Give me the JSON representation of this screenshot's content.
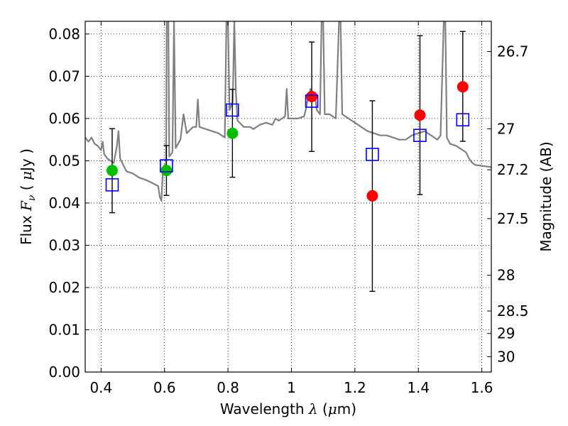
{
  "chart_data": {
    "type": "scatter",
    "title": "",
    "xlabel": {
      "prefix": "Wavelength  ",
      "symbol": "λ",
      "unit_open": " (",
      "mu": "μ",
      "unit_close": "m)"
    },
    "ylabel": {
      "prefix": "Flux  ",
      "symbol": "F",
      "subscript": "ν",
      "unit_open": "  ( ",
      "mu": "μ",
      "unit_close": "Jy )"
    },
    "y2label": "Magnitude (AB)",
    "xlim": [
      0.35,
      1.63
    ],
    "ylim": [
      0.0,
      0.083
    ],
    "grid": true,
    "x_ticks": [
      {
        "v": 0.4,
        "label": "0.4"
      },
      {
        "v": 0.6,
        "label": "0.6"
      },
      {
        "v": 0.8,
        "label": "0.8"
      },
      {
        "v": 1.0,
        "label": "1"
      },
      {
        "v": 1.2,
        "label": "1.2"
      },
      {
        "v": 1.4,
        "label": "1.4"
      },
      {
        "v": 1.6,
        "label": "1.6"
      }
    ],
    "y_ticks": [
      {
        "v": 0.0,
        "label": "0.00"
      },
      {
        "v": 0.01,
        "label": "0.01"
      },
      {
        "v": 0.02,
        "label": "0.02"
      },
      {
        "v": 0.03,
        "label": "0.03"
      },
      {
        "v": 0.04,
        "label": "0.04"
      },
      {
        "v": 0.05,
        "label": "0.05"
      },
      {
        "v": 0.06,
        "label": "0.06"
      },
      {
        "v": 0.07,
        "label": "0.07"
      },
      {
        "v": 0.08,
        "label": "0.08"
      }
    ],
    "y2_ticks": [
      {
        "mag": 26.7,
        "label": "26.7"
      },
      {
        "mag": 27,
        "label": "27"
      },
      {
        "mag": 27.2,
        "label": "27.2"
      },
      {
        "mag": 27.5,
        "label": "27.5"
      },
      {
        "mag": 28,
        "label": "28"
      },
      {
        "mag": 28.5,
        "label": "28.5"
      },
      {
        "mag": 29,
        "label": "29"
      },
      {
        "mag": 30,
        "label": "30"
      }
    ],
    "series": [
      {
        "name": "model-spectrum",
        "kind": "line",
        "color": "#808080",
        "points": [
          [
            0.35,
            0.0555
          ],
          [
            0.36,
            0.0545
          ],
          [
            0.37,
            0.0555
          ],
          [
            0.38,
            0.054
          ],
          [
            0.39,
            0.0535
          ],
          [
            0.4,
            0.0525
          ],
          [
            0.405,
            0.0545
          ],
          [
            0.41,
            0.0515
          ],
          [
            0.42,
            0.0505
          ],
          [
            0.43,
            0.05
          ],
          [
            0.44,
            0.0495
          ],
          [
            0.445,
            0.0515
          ],
          [
            0.45,
            0.0535
          ],
          [
            0.455,
            0.057
          ],
          [
            0.46,
            0.0505
          ],
          [
            0.47,
            0.049
          ],
          [
            0.48,
            0.0475
          ],
          [
            0.5,
            0.047
          ],
          [
            0.52,
            0.046
          ],
          [
            0.54,
            0.0455
          ],
          [
            0.56,
            0.0448
          ],
          [
            0.58,
            0.044
          ],
          [
            0.585,
            0.0415
          ],
          [
            0.59,
            0.0405
          ],
          [
            0.595,
            0.048
          ],
          [
            0.6,
            0.049
          ],
          [
            0.605,
            0.049
          ],
          [
            0.607,
            0.083
          ],
          [
            0.612,
            0.083
          ],
          [
            0.615,
            0.051
          ],
          [
            0.625,
            0.052
          ],
          [
            0.63,
            0.083
          ],
          [
            0.635,
            0.053
          ],
          [
            0.65,
            0.055
          ],
          [
            0.66,
            0.061
          ],
          [
            0.67,
            0.0565
          ],
          [
            0.69,
            0.058
          ],
          [
            0.7,
            0.058
          ],
          [
            0.705,
            0.0645
          ],
          [
            0.71,
            0.058
          ],
          [
            0.73,
            0.0575
          ],
          [
            0.75,
            0.057
          ],
          [
            0.77,
            0.0565
          ],
          [
            0.79,
            0.0555
          ],
          [
            0.795,
            0.083
          ],
          [
            0.8,
            0.083
          ],
          [
            0.805,
            0.062
          ],
          [
            0.815,
            0.064
          ],
          [
            0.82,
            0.083
          ],
          [
            0.825,
            0.066
          ],
          [
            0.83,
            0.0595
          ],
          [
            0.85,
            0.058
          ],
          [
            0.87,
            0.058
          ],
          [
            0.88,
            0.0575
          ],
          [
            0.9,
            0.0585
          ],
          [
            0.92,
            0.059
          ],
          [
            0.94,
            0.0585
          ],
          [
            0.95,
            0.06
          ],
          [
            0.96,
            0.0595
          ],
          [
            0.97,
            0.06
          ],
          [
            0.98,
            0.0605
          ],
          [
            0.985,
            0.067
          ],
          [
            0.99,
            0.06
          ],
          [
            1.0,
            0.06
          ],
          [
            1.02,
            0.06
          ],
          [
            1.04,
            0.0605
          ],
          [
            1.045,
            0.062
          ],
          [
            1.05,
            0.064
          ],
          [
            1.06,
            0.067
          ],
          [
            1.075,
            0.065
          ],
          [
            1.08,
            0.062
          ],
          [
            1.09,
            0.061
          ],
          [
            1.095,
            0.083
          ],
          [
            1.1,
            0.083
          ],
          [
            1.105,
            0.061
          ],
          [
            1.12,
            0.061
          ],
          [
            1.13,
            0.0605
          ],
          [
            1.14,
            0.06
          ],
          [
            1.15,
            0.083
          ],
          [
            1.155,
            0.083
          ],
          [
            1.16,
            0.061
          ],
          [
            1.18,
            0.06
          ],
          [
            1.2,
            0.059
          ],
          [
            1.22,
            0.058
          ],
          [
            1.24,
            0.057
          ],
          [
            1.26,
            0.0565
          ],
          [
            1.28,
            0.056
          ],
          [
            1.3,
            0.056
          ],
          [
            1.32,
            0.0555
          ],
          [
            1.34,
            0.055
          ],
          [
            1.36,
            0.055
          ],
          [
            1.38,
            0.056
          ],
          [
            1.4,
            0.0565
          ],
          [
            1.42,
            0.057
          ],
          [
            1.43,
            0.0565
          ],
          [
            1.44,
            0.056
          ],
          [
            1.45,
            0.0555
          ],
          [
            1.46,
            0.055
          ],
          [
            1.47,
            0.056
          ],
          [
            1.48,
            0.083
          ],
          [
            1.485,
            0.083
          ],
          [
            1.49,
            0.0555
          ],
          [
            1.5,
            0.054
          ],
          [
            1.52,
            0.0535
          ],
          [
            1.53,
            0.053
          ],
          [
            1.54,
            0.0525
          ],
          [
            1.55,
            0.052
          ],
          [
            1.56,
            0.0505
          ],
          [
            1.57,
            0.0495
          ],
          [
            1.58,
            0.049
          ],
          [
            1.6,
            0.0488
          ],
          [
            1.63,
            0.0485
          ]
        ]
      },
      {
        "name": "observed-green",
        "kind": "marker",
        "marker": "circle",
        "color": "#00bf00",
        "points": [
          [
            0.435,
            0.0477
          ],
          [
            0.606,
            0.0477
          ],
          [
            0.814,
            0.0565
          ]
        ],
        "err_low": [
          0.0377,
          0.0418,
          0.0461
        ],
        "err_high": [
          0.0576,
          0.0536,
          0.0669
        ]
      },
      {
        "name": "observed-red",
        "kind": "marker",
        "marker": "circle",
        "color": "#ff0000",
        "points": [
          [
            1.064,
            0.0652
          ],
          [
            1.255,
            0.0417
          ],
          [
            1.405,
            0.0608
          ],
          [
            1.54,
            0.0675
          ]
        ],
        "err_low": [
          0.0522,
          0.0191,
          0.042,
          0.0546
        ],
        "err_high": [
          0.0781,
          0.0642,
          0.0796,
          0.0806
        ]
      },
      {
        "name": "model-photometry",
        "kind": "marker",
        "marker": "square-open",
        "color": "#0000ff",
        "points": [
          [
            0.435,
            0.0443
          ],
          [
            0.606,
            0.0488
          ],
          [
            0.814,
            0.062
          ],
          [
            1.064,
            0.0641
          ],
          [
            1.255,
            0.0515
          ],
          [
            1.405,
            0.056
          ],
          [
            1.54,
            0.0597
          ]
        ]
      }
    ]
  }
}
